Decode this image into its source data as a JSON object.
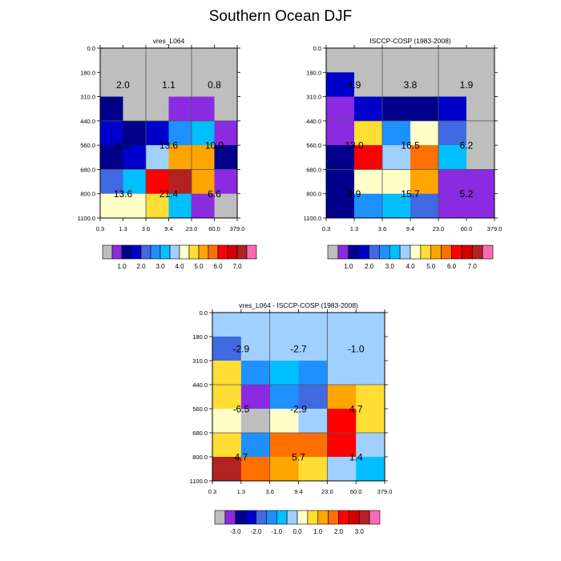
{
  "title": "Southern Ocean DJF",
  "chart_data": [
    {
      "type": "heatmap",
      "title": "vres_L064",
      "x_ticks": [
        "0.3",
        "1.3",
        "3.6",
        "9.4",
        "23.0",
        "60.0",
        "379.0"
      ],
      "y_ticks": [
        "0.0",
        "180.0",
        "310.0",
        "440.0",
        "560.0",
        "680.0",
        "800.0",
        "1100.0"
      ],
      "colors": [
        [
          "#bebebe",
          "#bebebe",
          "#bebebe",
          "#bebebe",
          "#bebebe",
          "#bebebe"
        ],
        [
          "#bebebe",
          "#bebebe",
          "#bebebe",
          "#bebebe",
          "#bebebe",
          "#bebebe"
        ],
        [
          "#00008b",
          "#bebebe",
          "#bebebe",
          "#8a2be2",
          "#8a2be2",
          "#bebebe"
        ],
        [
          "#0000cd",
          "#00008b",
          "#0000cd",
          "#1e90ff",
          "#00bfff",
          "#8a2be2"
        ],
        [
          "#00008b",
          "#0000cd",
          "#a0d0ff",
          "#ffa500",
          "#ffa500",
          "#00008b"
        ],
        [
          "#4169e1",
          "#00bfff",
          "#ff0000",
          "#b22222",
          "#ffa500",
          "#8a2be2"
        ],
        [
          "#ffffc8",
          "#ffffc8",
          "#ffdd33",
          "#00bfff",
          "#8a2be2",
          "#bebebe"
        ]
      ],
      "block_values": [
        [
          "2.0",
          "1.1",
          "0.8"
        ],
        [
          "6.5",
          "13.6",
          "10.9"
        ],
        [
          "13.6",
          "21.4",
          "6.6"
        ]
      ]
    },
    {
      "type": "heatmap",
      "title": "ISCCP-COSP (1983-2008)",
      "x_ticks": [
        "0.3",
        "1.3",
        "3.6",
        "9.4",
        "23.0",
        "60.0",
        "379.0"
      ],
      "y_ticks": [
        "0.0",
        "180.0",
        "310.0",
        "440.0",
        "560.0",
        "680.0",
        "800.0",
        "1100.0"
      ],
      "colors": [
        [
          "#bebebe",
          "#bebebe",
          "#bebebe",
          "#bebebe",
          "#bebebe",
          "#bebebe"
        ],
        [
          "#0000cd",
          "#bebebe",
          "#bebebe",
          "#bebebe",
          "#bebebe",
          "#bebebe"
        ],
        [
          "#8a2be2",
          "#0000cd",
          "#00008b",
          "#00008b",
          "#0000cd",
          "#bebebe"
        ],
        [
          "#8a2be2",
          "#ffdd33",
          "#1e90ff",
          "#ffffc8",
          "#4169e1",
          "#bebebe"
        ],
        [
          "#00008b",
          "#ff0000",
          "#a0d0ff",
          "#ff7000",
          "#00bfff",
          "#bebebe"
        ],
        [
          "#00008b",
          "#ffffc8",
          "#ffffc8",
          "#ffa500",
          "#8a2be2",
          "#8a2be2"
        ],
        [
          "#00008b",
          "#1e90ff",
          "#00bfff",
          "#4169e1",
          "#8a2be2",
          "#8a2be2"
        ]
      ],
      "block_values": [
        [
          "4.9",
          "3.8",
          "1.9"
        ],
        [
          "13.0",
          "16.5",
          "6.2"
        ],
        [
          "8.9",
          "15.7",
          "5.2"
        ]
      ]
    },
    {
      "type": "heatmap",
      "title": "vres_L064 - ISCCP-COSP (1983-2008)",
      "x_ticks": [
        "0.3",
        "1.3",
        "3.6",
        "9.4",
        "23.0",
        "60.0",
        "379.0"
      ],
      "y_ticks": [
        "0.0",
        "180.0",
        "310.0",
        "440.0",
        "560.0",
        "680.0",
        "800.0",
        "1100.0"
      ],
      "colors": [
        [
          "#a0d0ff",
          "#a0d0ff",
          "#a0d0ff",
          "#a0d0ff",
          "#a0d0ff",
          "#a0d0ff"
        ],
        [
          "#4169e1",
          "#a0d0ff",
          "#a0d0ff",
          "#a0d0ff",
          "#a0d0ff",
          "#a0d0ff"
        ],
        [
          "#ffdd33",
          "#1e90ff",
          "#00bfff",
          "#1e90ff",
          "#a0d0ff",
          "#a0d0ff"
        ],
        [
          "#ffdd33",
          "#8a2be2",
          "#1e90ff",
          "#4169e1",
          "#ffa500",
          "#ffdd33"
        ],
        [
          "#ffffc8",
          "#bebebe",
          "#ffffc8",
          "#a0d0ff",
          "#ff0000",
          "#ffdd33"
        ],
        [
          "#ffdd33",
          "#1e90ff",
          "#ff7000",
          "#ff7000",
          "#ff0000",
          "#a0d0ff"
        ],
        [
          "#b22222",
          "#ff7000",
          "#ffa500",
          "#ffdd33",
          "#a0d0ff",
          "#00bfff"
        ]
      ],
      "block_values": [
        [
          "-2.9",
          "-2.7",
          "-1.0"
        ],
        [
          "-6.5",
          "-2.9",
          "4.7"
        ],
        [
          "4.7",
          "5.7",
          "1.4"
        ]
      ]
    }
  ],
  "colorbars": [
    {
      "colors": [
        "#bebebe",
        "#8a2be2",
        "#00008b",
        "#0000cd",
        "#4169e1",
        "#1e90ff",
        "#00bfff",
        "#a0d0ff",
        "#ffffc8",
        "#ffdd33",
        "#ffa500",
        "#ff7000",
        "#ff0000",
        "#d40000",
        "#b22222",
        "#ff69b4"
      ],
      "labels": [
        "1.0",
        "2.0",
        "3.0",
        "4.0",
        "5.0",
        "6.0",
        "7.0"
      ]
    },
    {
      "colors": [
        "#bebebe",
        "#8a2be2",
        "#00008b",
        "#0000cd",
        "#4169e1",
        "#1e90ff",
        "#00bfff",
        "#a0d0ff",
        "#ffffc8",
        "#ffdd33",
        "#ffa500",
        "#ff7000",
        "#ff0000",
        "#d40000",
        "#b22222",
        "#ff69b4"
      ],
      "labels": [
        "1.0",
        "2.0",
        "3.0",
        "4.0",
        "5.0",
        "6.0",
        "7.0"
      ]
    },
    {
      "colors": [
        "#bebebe",
        "#8a2be2",
        "#00008b",
        "#0000cd",
        "#4169e1",
        "#1e90ff",
        "#00bfff",
        "#a0d0ff",
        "#ffffc8",
        "#ffdd33",
        "#ffa500",
        "#ff7000",
        "#ff0000",
        "#d40000",
        "#b22222",
        "#ff69b4"
      ],
      "labels": [
        "-3.0",
        "-2.0",
        "-1.0",
        "0.0",
        "1.0",
        "2.0",
        "3.0"
      ]
    }
  ]
}
